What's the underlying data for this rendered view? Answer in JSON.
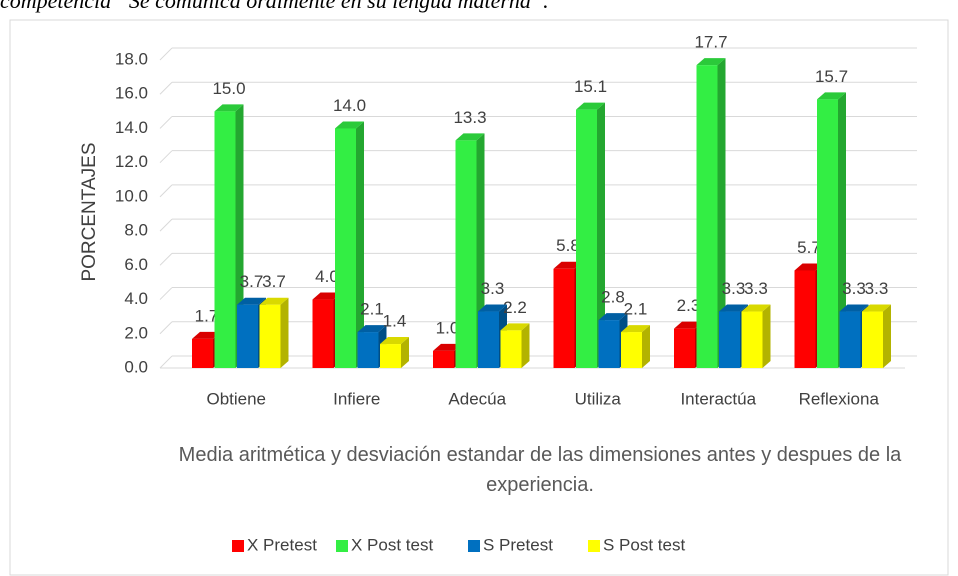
{
  "caption": "competencia “Se comunica oralmente en su lengua materna”.",
  "chart_data": {
    "type": "bar3d",
    "ylabel": "PORCENTAJES",
    "xlabel": "Media aritmética y desviación estandar de las dimensiones antes y despues de la experiencia.",
    "categories": [
      "Obtiene",
      "Infiere",
      "Adecúa",
      "Utiliza",
      "Interactúa",
      "Reflexiona"
    ],
    "series": [
      {
        "name": "X Pretest",
        "color": "#ff0000",
        "values": [
          1.7,
          4.0,
          1.0,
          5.8,
          2.3,
          5.7
        ],
        "value_labels": [
          "1.7",
          "4.0",
          "1.0",
          "5.8",
          "2.3",
          "5.7"
        ]
      },
      {
        "name": "X Post test",
        "color": "#33ee44",
        "values": [
          15.0,
          14.0,
          13.3,
          15.1,
          17.7,
          15.7
        ],
        "value_labels": [
          "15.0",
          "14.0",
          "13.3",
          "15.1",
          "17.7",
          "15.7"
        ]
      },
      {
        "name": "S Pretest",
        "color": "#0070c0",
        "values": [
          3.7,
          2.1,
          3.3,
          2.8,
          3.3,
          3.3
        ],
        "value_labels": [
          "3.7",
          "2.1",
          "3.3",
          "2.8",
          "3.3",
          "3.3"
        ]
      },
      {
        "name": "S Post test",
        "color": "#ffff00",
        "values": [
          3.7,
          1.4,
          2.2,
          2.1,
          3.3,
          3.3
        ],
        "value_labels": [
          "3.7",
          "1.4",
          "2.2",
          "2.1",
          "3.3",
          "3.3"
        ]
      }
    ],
    "ylim": [
      0,
      18
    ],
    "yticks": [
      {
        "value": 0,
        "label": "0.0"
      },
      {
        "value": 2,
        "label": "2.0"
      },
      {
        "value": 4,
        "label": "4.0"
      },
      {
        "value": 6,
        "label": "6.0"
      },
      {
        "value": 8,
        "label": "8.0"
      },
      {
        "value": 10,
        "label": "10.0"
      },
      {
        "value": 12,
        "label": "12.0"
      },
      {
        "value": 14,
        "label": "14.0"
      },
      {
        "value": 16,
        "label": "16.0"
      },
      {
        "value": 18,
        "label": "18.0"
      }
    ],
    "grid": true,
    "legend": "bottom"
  }
}
